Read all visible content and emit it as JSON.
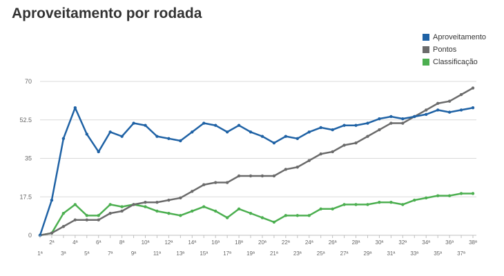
{
  "chart_data": {
    "type": "line",
    "title": "Aproveitamento por rodada",
    "categories": [
      "1ª",
      "2ª",
      "3ª",
      "4ª",
      "5ª",
      "6ª",
      "7ª",
      "8ª",
      "9ª",
      "10ª",
      "11ª",
      "12ª",
      "13ª",
      "14ª",
      "15ª",
      "16ª",
      "17ª",
      "18ª",
      "19ª",
      "20ª",
      "21ª",
      "22ª",
      "23ª",
      "24ª",
      "25ª",
      "26ª",
      "27ª",
      "28ª",
      "29ª",
      "30ª",
      "31ª",
      "32ª",
      "33ª",
      "34ª",
      "35ª",
      "36ª",
      "37ª",
      "38ª"
    ],
    "ylim": [
      0,
      70
    ],
    "yticks": [
      "0",
      "17.5",
      "35",
      "52.5",
      "70"
    ],
    "ytick_values": [
      0,
      17.5,
      35,
      52.5,
      70
    ],
    "grid": true,
    "legend_position": "top-right",
    "series": [
      {
        "name": "Aproveitamento",
        "color": "#1f62a5",
        "values": [
          0,
          16,
          44,
          58,
          46,
          38,
          47,
          45,
          51,
          50,
          45,
          44,
          43,
          47,
          51,
          50,
          47,
          50,
          47,
          45,
          42,
          45,
          44,
          47,
          49,
          48,
          50,
          50,
          51,
          53,
          54,
          53,
          54,
          55,
          57,
          56,
          57,
          58
        ]
      },
      {
        "name": "Pontos",
        "color": "#6b6b6b",
        "values": [
          0,
          1,
          4,
          7,
          7,
          7,
          10,
          11,
          14,
          15,
          15,
          16,
          17,
          20,
          23,
          24,
          24,
          27,
          27,
          27,
          27,
          30,
          31,
          34,
          37,
          38,
          41,
          42,
          45,
          48,
          51,
          51,
          54,
          57,
          60,
          61,
          64,
          67
        ]
      },
      {
        "name": "Classificação",
        "color": "#4caf50",
        "values": [
          0,
          1,
          10,
          14,
          9,
          9,
          14,
          13,
          14,
          13,
          11,
          10,
          9,
          11,
          13,
          11,
          8,
          12,
          10,
          8,
          6,
          9,
          9,
          9,
          12,
          12,
          14,
          14,
          14,
          15,
          15,
          14,
          16,
          17,
          18,
          18,
          19,
          19
        ]
      }
    ]
  }
}
